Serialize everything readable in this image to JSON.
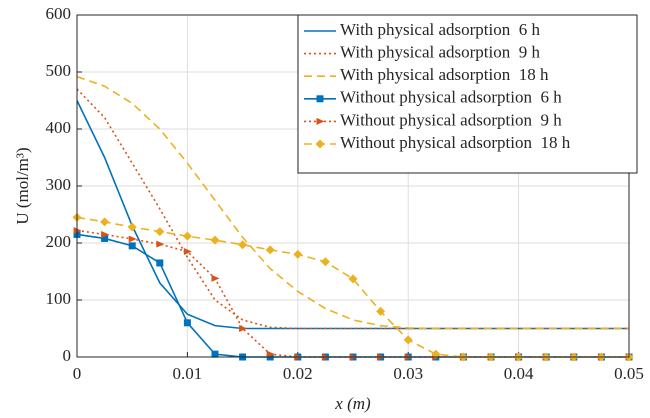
{
  "chart_data": {
    "type": "line",
    "x_label": "x (m)",
    "y_label": "U (mol/m³)",
    "x": [
      0,
      0.0025,
      0.005,
      0.0075,
      0.01,
      0.0125,
      0.015,
      0.0175,
      0.02,
      0.0225,
      0.025,
      0.0275,
      0.03,
      0.0325,
      0.035,
      0.0375,
      0.04,
      0.0425,
      0.045,
      0.0475,
      0.05
    ],
    "xlim": [
      0,
      0.05
    ],
    "xticks": [
      0,
      0.01,
      0.02,
      0.03,
      0.04,
      0.05
    ],
    "ylim": [
      0,
      600
    ],
    "yticks": [
      0,
      100,
      200,
      300,
      400,
      500,
      600
    ],
    "grid": true,
    "legend": "upper right",
    "series": [
      {
        "name": "With physical adsorption  6 h",
        "color": "#0072BD",
        "style": "solid",
        "marker": null,
        "values": [
          450,
          350,
          230,
          130,
          75,
          55,
          50,
          50,
          50,
          50,
          50,
          50,
          50,
          50,
          50,
          50,
          50,
          50,
          50,
          50,
          50
        ]
      },
      {
        "name": "With physical adsorption  9 h",
        "color": "#D95319",
        "style": "dotted",
        "marker": null,
        "values": [
          470,
          420,
          340,
          260,
          175,
          100,
          65,
          52,
          50,
          50,
          50,
          50,
          50,
          50,
          50,
          50,
          50,
          50,
          50,
          50,
          50
        ]
      },
      {
        "name": "With physical adsorption  18 h",
        "color": "#EDB120",
        "style": "dashed",
        "marker": null,
        "values": [
          492,
          475,
          445,
          400,
          340,
          275,
          210,
          155,
          115,
          85,
          65,
          55,
          51,
          50,
          50,
          50,
          50,
          50,
          50,
          50,
          50
        ]
      },
      {
        "name": "Without physical adsorption  6 h",
        "color": "#0072BD",
        "style": "solid",
        "marker": "square",
        "values": [
          215,
          208,
          195,
          165,
          60,
          5,
          0,
          0,
          0,
          0,
          0,
          0,
          0,
          0,
          0,
          0,
          0,
          0,
          0,
          0,
          0
        ]
      },
      {
        "name": "Without physical adsorption  9 h",
        "color": "#D95319",
        "style": "dotted",
        "marker": "triangle-right",
        "values": [
          222,
          215,
          207,
          198,
          185,
          138,
          50,
          5,
          0,
          0,
          0,
          0,
          0,
          0,
          0,
          0,
          0,
          0,
          0,
          0,
          0
        ]
      },
      {
        "name": "Without physical adsorption  18 h",
        "color": "#EDB120",
        "style": "dashed",
        "marker": "diamond",
        "values": [
          245,
          237,
          228,
          220,
          212,
          205,
          197,
          188,
          180,
          167,
          137,
          80,
          30,
          5,
          0,
          0,
          0,
          0,
          0,
          0,
          0
        ]
      }
    ]
  }
}
